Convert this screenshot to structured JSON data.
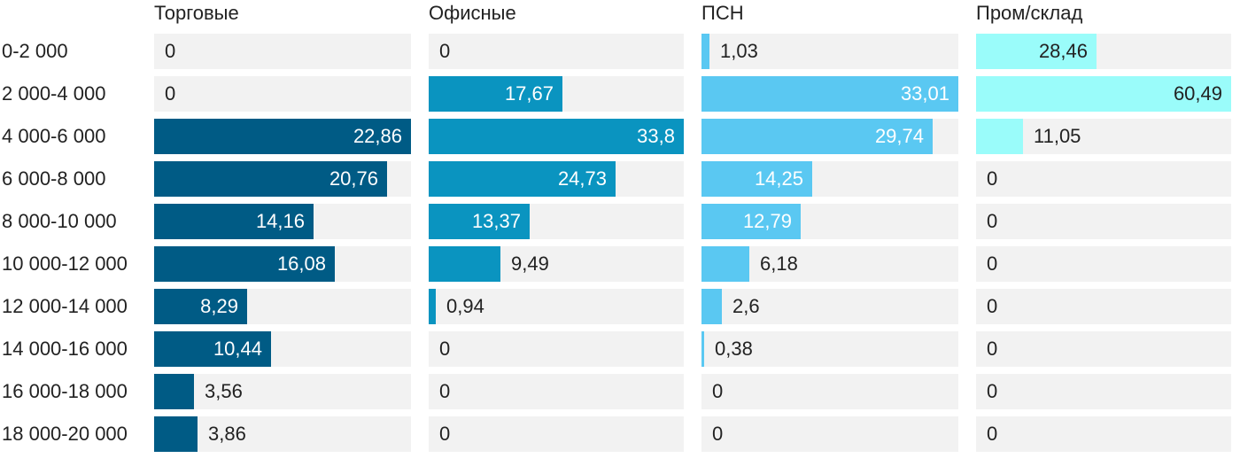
{
  "chart_data": {
    "type": "bar",
    "orientation": "horizontal",
    "categories": [
      "0-2 000",
      "2 000-4 000",
      "4 000-6 000",
      "6 000-8 000",
      "8 000-10 000",
      "10 000-12 000",
      "12 000-14 000",
      "14 000-16 000",
      "16 000-18 000",
      "18 000-20 000"
    ],
    "series": [
      {
        "name": "Торговые",
        "color": "#005b85",
        "max": 22.86,
        "values": [
          0,
          0,
          22.86,
          20.76,
          14.16,
          16.08,
          8.29,
          10.44,
          3.56,
          3.86
        ],
        "labels": [
          "0",
          "0",
          "22,86",
          "20,76",
          "14,16",
          "16,08",
          "8,29",
          "10,44",
          "3,56",
          "3,86"
        ]
      },
      {
        "name": "Офисные",
        "color": "#0a94c0",
        "max": 33.8,
        "values": [
          0,
          17.67,
          33.8,
          24.73,
          13.37,
          9.49,
          0.94,
          0,
          0,
          0
        ],
        "labels": [
          "0",
          "17,67",
          "33,8",
          "24,73",
          "13,37",
          "9,49",
          "0,94",
          "0",
          "0",
          "0"
        ]
      },
      {
        "name": "ПСН",
        "color": "#5ac8f2",
        "max": 33.01,
        "values": [
          1.03,
          33.01,
          29.74,
          14.25,
          12.79,
          6.18,
          2.6,
          0.38,
          0,
          0
        ],
        "labels": [
          "1,03",
          "33,01",
          "29,74",
          "14,25",
          "12,79",
          "6,18",
          "2,6",
          "0,38",
          "0",
          "0"
        ]
      },
      {
        "name": "Пром/склад",
        "color": "#9afcfa",
        "max": 60.49,
        "values": [
          28.46,
          60.49,
          11.05,
          0,
          0,
          0,
          0,
          0,
          0,
          0
        ],
        "labels": [
          "28,46",
          "60,49",
          "11,05",
          "0",
          "0",
          "0",
          "0",
          "0",
          "0",
          "0"
        ]
      }
    ]
  }
}
